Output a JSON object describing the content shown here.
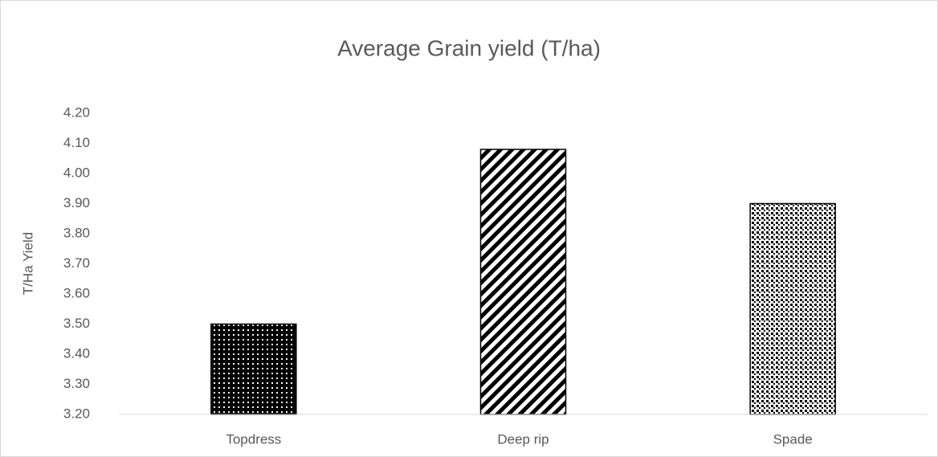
{
  "chart_data": {
    "type": "bar",
    "title": "Average Grain yield (T/ha)",
    "y_label": "T/Ha Yield",
    "categories": [
      "Topdress",
      "Deep rip",
      "Spade"
    ],
    "values": [
      3.5,
      4.08,
      3.9
    ],
    "color": "#000000",
    "ylim": [
      3.2,
      4.2
    ],
    "yticks": [
      {
        "value": 3.2,
        "label": "3.20"
      },
      {
        "value": 3.3,
        "label": "3.30"
      },
      {
        "value": 3.4,
        "label": "3.40"
      },
      {
        "value": 3.5,
        "label": "3.50"
      },
      {
        "value": 3.6,
        "label": "3.60"
      },
      {
        "value": 3.7,
        "label": "3.70"
      },
      {
        "value": 3.8,
        "label": "3.80"
      },
      {
        "value": 3.9,
        "label": "3.90"
      },
      {
        "value": 4.0,
        "label": "4.00"
      },
      {
        "value": 4.1,
        "label": "4.10"
      },
      {
        "value": 4.2,
        "label": "4.20"
      }
    ],
    "grid": false
  }
}
